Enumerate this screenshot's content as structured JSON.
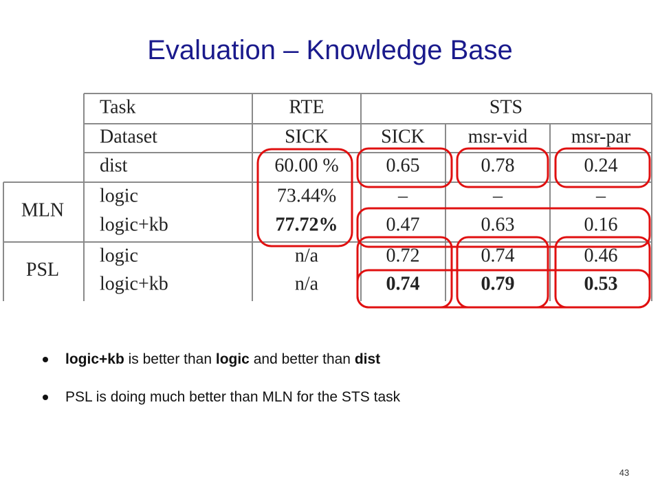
{
  "title": "Evaluation – Knowledge Base",
  "table": {
    "header": {
      "task": "Task",
      "rte": "RTE",
      "sts": "STS"
    },
    "datasets": {
      "label": "Dataset",
      "columns": [
        "SICK",
        "SICK",
        "msr-vid",
        "msr-par"
      ]
    },
    "rows": [
      [
        "dist",
        "60.00 %",
        "0.65",
        "0.78",
        "0.24"
      ]
    ],
    "groups": [
      {
        "name": "MLN",
        "rows": [
          [
            "logic",
            "73.44%",
            "–",
            "–",
            "–"
          ],
          [
            "logic+kb",
            "77.72%",
            "0.47",
            "0.63",
            "0.16"
          ]
        ]
      },
      {
        "name": "PSL",
        "rows": [
          [
            "logic",
            "n/a",
            "0.72",
            "0.74",
            "0.46"
          ],
          [
            "logic+kb",
            "n/a",
            "0.74",
            "0.79",
            "0.53"
          ]
        ]
      }
    ]
  },
  "bullets": [
    [
      "logic+kb",
      " is better than ",
      "logic",
      " and better than ",
      "dist"
    ],
    [
      "PSL is doing much better than MLN for the STS task"
    ]
  ],
  "page_number": "43"
}
